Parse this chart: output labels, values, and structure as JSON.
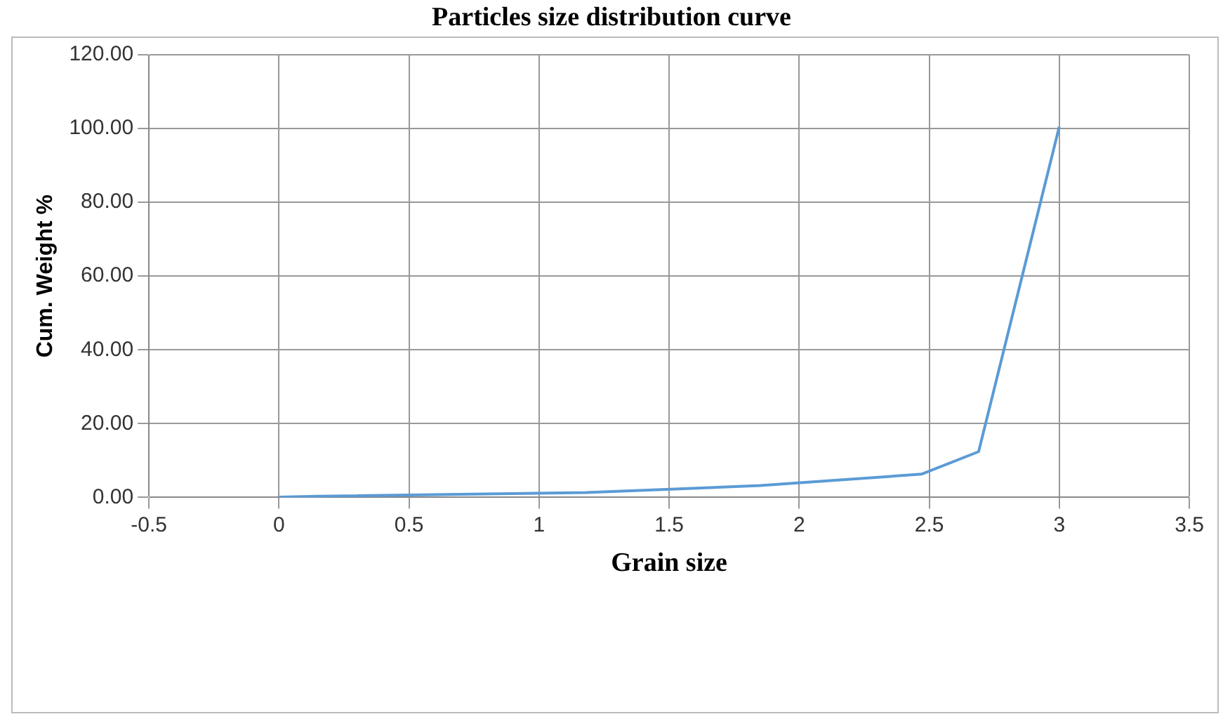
{
  "chart_data": {
    "type": "line",
    "title": "Particles size distribution curve",
    "xlabel": "Grain size",
    "ylabel": "Cum. Weight %",
    "series": [
      {
        "color": "#5b9bd5",
        "x": [
          0,
          0.15,
          1.18,
          1.85,
          2.47,
          2.69,
          3
        ],
        "values": [
          0.1,
          0.3,
          1.3,
          3.2,
          6.3,
          12.4,
          100.5
        ]
      }
    ],
    "xlim": [
      -0.5,
      3.5
    ],
    "xticks": [
      -0.5,
      0,
      0.5,
      1,
      1.5,
      2,
      2.5,
      3,
      3.5
    ],
    "ylim": [
      0,
      120
    ],
    "yticks": [
      {
        "value": 0,
        "label": "0.00"
      },
      {
        "value": 20,
        "label": "20.00"
      },
      {
        "value": 40,
        "label": "40.00"
      },
      {
        "value": 60,
        "label": "60.00"
      },
      {
        "value": 80,
        "label": "80.00"
      },
      {
        "value": 100,
        "label": "100.00"
      },
      {
        "value": 120,
        "label": "120.00"
      }
    ],
    "grid": true,
    "legend": false,
    "marker": "none",
    "line_style": "solid"
  }
}
